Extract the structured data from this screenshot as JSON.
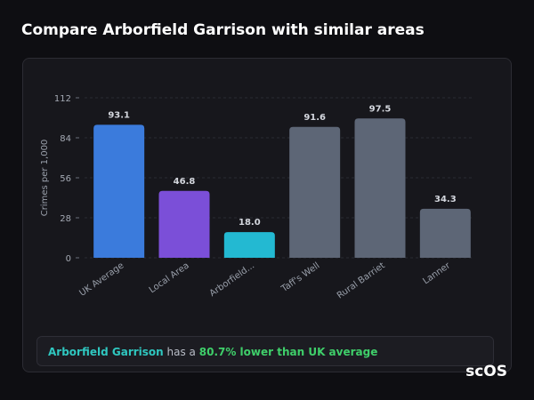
{
  "header": {
    "title": "Compare Arborfield Garrison with similar areas"
  },
  "chart_data": {
    "type": "bar",
    "y_label": "Crimes per 1,000",
    "categories": [
      "UK Average",
      "Local Area",
      "Arborfield...",
      "Taff's Well",
      "Rural Barriet",
      "Lanner"
    ],
    "values": [
      93.1,
      46.8,
      18.0,
      91.6,
      97.5,
      34.3
    ],
    "value_labels": [
      "93.1",
      "46.8",
      "18.0",
      "91.6",
      "97.5",
      "34.3"
    ],
    "colors": [
      "#3b7bdc",
      "#7b4fd8",
      "#23b9d2",
      "#5d6676",
      "#5d6676",
      "#5d6676"
    ],
    "ylim": [
      0,
      112
    ],
    "yticks": [
      0,
      28,
      56,
      84,
      112
    ],
    "grid": true
  },
  "note": {
    "subject": "Arborfield Garrison",
    "middle": "has a",
    "highlight": "80.7% lower than UK average"
  },
  "watermark": "scOS"
}
